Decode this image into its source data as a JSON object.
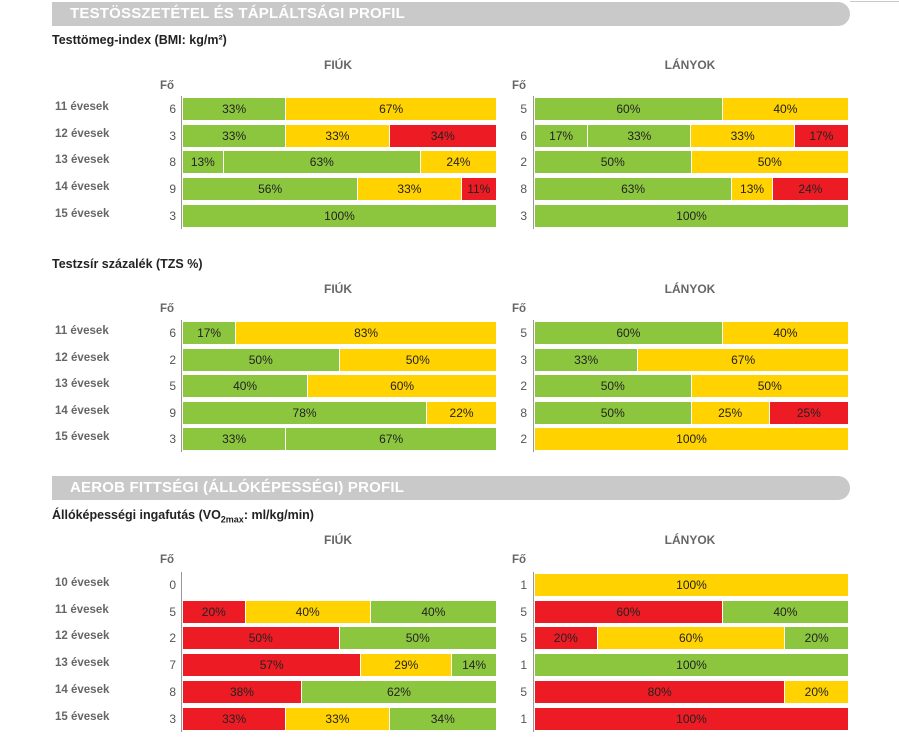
{
  "colors": {
    "green": "#8cc63f",
    "yellow": "#ffd200",
    "red": "#ed1c24"
  },
  "fo_label": "Fő",
  "group_labels": [
    "FIÚK",
    "LÁNYOK"
  ],
  "sections": [
    {
      "banner": "TESTÖSSZETÉTEL ÉS TÁPLÁLTSÁGI PROFIL",
      "charts": [
        {
          "title": "Testtömeg-index (BMI: kg/m²)",
          "rows": [
            {
              "label": "11 évesek",
              "boys": {
                "n": "6",
                "segs": [
                  {
                    "c": "green",
                    "v": 33
                  },
                  {
                    "c": "yellow",
                    "v": 67
                  }
                ]
              },
              "girls": {
                "n": "5",
                "segs": [
                  {
                    "c": "green",
                    "v": 60
                  },
                  {
                    "c": "yellow",
                    "v": 40
                  }
                ]
              }
            },
            {
              "label": "12 évesek",
              "boys": {
                "n": "3",
                "segs": [
                  {
                    "c": "green",
                    "v": 33
                  },
                  {
                    "c": "yellow",
                    "v": 33
                  },
                  {
                    "c": "red",
                    "v": 34
                  }
                ]
              },
              "girls": {
                "n": "6",
                "segs": [
                  {
                    "c": "green",
                    "v": 17
                  },
                  {
                    "c": "green",
                    "v": 33
                  },
                  {
                    "c": "yellow",
                    "v": 33
                  },
                  {
                    "c": "red",
                    "v": 17
                  }
                ]
              }
            },
            {
              "label": "13 évesek",
              "boys": {
                "n": "8",
                "segs": [
                  {
                    "c": "green",
                    "v": 13
                  },
                  {
                    "c": "green",
                    "v": 63
                  },
                  {
                    "c": "yellow",
                    "v": 24
                  }
                ]
              },
              "girls": {
                "n": "2",
                "segs": [
                  {
                    "c": "green",
                    "v": 50
                  },
                  {
                    "c": "yellow",
                    "v": 50
                  }
                ]
              }
            },
            {
              "label": "14 évesek",
              "boys": {
                "n": "9",
                "segs": [
                  {
                    "c": "green",
                    "v": 56
                  },
                  {
                    "c": "yellow",
                    "v": 33
                  },
                  {
                    "c": "red",
                    "v": 11
                  }
                ]
              },
              "girls": {
                "n": "8",
                "segs": [
                  {
                    "c": "green",
                    "v": 63
                  },
                  {
                    "c": "yellow",
                    "v": 13
                  },
                  {
                    "c": "red",
                    "v": 24
                  }
                ]
              }
            },
            {
              "label": "15 évesek",
              "boys": {
                "n": "3",
                "segs": [
                  {
                    "c": "green",
                    "v": 100
                  }
                ]
              },
              "girls": {
                "n": "3",
                "segs": [
                  {
                    "c": "green",
                    "v": 100
                  }
                ]
              }
            }
          ]
        },
        {
          "title": "Testzsír százalék (TZS %)",
          "rows": [
            {
              "label": "11 évesek",
              "boys": {
                "n": "6",
                "segs": [
                  {
                    "c": "green",
                    "v": 17
                  },
                  {
                    "c": "yellow",
                    "v": 83
                  }
                ]
              },
              "girls": {
                "n": "5",
                "segs": [
                  {
                    "c": "green",
                    "v": 60
                  },
                  {
                    "c": "yellow",
                    "v": 40
                  }
                ]
              }
            },
            {
              "label": "12 évesek",
              "boys": {
                "n": "2",
                "segs": [
                  {
                    "c": "green",
                    "v": 50
                  },
                  {
                    "c": "yellow",
                    "v": 50
                  }
                ]
              },
              "girls": {
                "n": "3",
                "segs": [
                  {
                    "c": "green",
                    "v": 33
                  },
                  {
                    "c": "yellow",
                    "v": 67
                  }
                ]
              }
            },
            {
              "label": "13 évesek",
              "boys": {
                "n": "5",
                "segs": [
                  {
                    "c": "green",
                    "v": 40
                  },
                  {
                    "c": "yellow",
                    "v": 60
                  }
                ]
              },
              "girls": {
                "n": "2",
                "segs": [
                  {
                    "c": "green",
                    "v": 50
                  },
                  {
                    "c": "yellow",
                    "v": 50
                  }
                ]
              }
            },
            {
              "label": "14 évesek",
              "boys": {
                "n": "9",
                "segs": [
                  {
                    "c": "green",
                    "v": 78
                  },
                  {
                    "c": "yellow",
                    "v": 22
                  }
                ]
              },
              "girls": {
                "n": "8",
                "segs": [
                  {
                    "c": "green",
                    "v": 50
                  },
                  {
                    "c": "yellow",
                    "v": 25
                  },
                  {
                    "c": "red",
                    "v": 25
                  }
                ]
              }
            },
            {
              "label": "15 évesek",
              "boys": {
                "n": "3",
                "segs": [
                  {
                    "c": "green",
                    "v": 33
                  },
                  {
                    "c": "green",
                    "v": 67
                  }
                ]
              },
              "girls": {
                "n": "2",
                "segs": [
                  {
                    "c": "yellow",
                    "v": 100
                  }
                ]
              }
            }
          ]
        }
      ]
    },
    {
      "banner": "AEROB FITTSÉGI (ÁLLÓKÉPESSÉGI) PROFIL",
      "charts": [
        {
          "title": "Állóképességi ingafutás (VO2max: ml/kg/min)",
          "title_main": "Állóképességi ingafutás (VO",
          "title_sub": "2max",
          "title_tail": ": ml/kg/min)",
          "rows": [
            {
              "label": "10 évesek",
              "boys": {
                "n": "0",
                "segs": []
              },
              "girls": {
                "n": "1",
                "segs": [
                  {
                    "c": "yellow",
                    "v": 100
                  }
                ]
              }
            },
            {
              "label": "11 évesek",
              "boys": {
                "n": "5",
                "segs": [
                  {
                    "c": "red",
                    "v": 20
                  },
                  {
                    "c": "yellow",
                    "v": 40
                  },
                  {
                    "c": "green",
                    "v": 40
                  }
                ]
              },
              "girls": {
                "n": "5",
                "segs": [
                  {
                    "c": "red",
                    "v": 60
                  },
                  {
                    "c": "green",
                    "v": 40
                  }
                ]
              }
            },
            {
              "label": "12 évesek",
              "boys": {
                "n": "2",
                "segs": [
                  {
                    "c": "red",
                    "v": 50
                  },
                  {
                    "c": "green",
                    "v": 50
                  }
                ]
              },
              "girls": {
                "n": "5",
                "segs": [
                  {
                    "c": "red",
                    "v": 20
                  },
                  {
                    "c": "yellow",
                    "v": 60
                  },
                  {
                    "c": "green",
                    "v": 20
                  }
                ]
              }
            },
            {
              "label": "13 évesek",
              "boys": {
                "n": "7",
                "segs": [
                  {
                    "c": "red",
                    "v": 57
                  },
                  {
                    "c": "yellow",
                    "v": 29
                  },
                  {
                    "c": "green",
                    "v": 14
                  }
                ]
              },
              "girls": {
                "n": "1",
                "segs": [
                  {
                    "c": "green",
                    "v": 100
                  }
                ]
              }
            },
            {
              "label": "14 évesek",
              "boys": {
                "n": "8",
                "segs": [
                  {
                    "c": "red",
                    "v": 38
                  },
                  {
                    "c": "green",
                    "v": 62
                  }
                ]
              },
              "girls": {
                "n": "5",
                "segs": [
                  {
                    "c": "red",
                    "v": 80
                  },
                  {
                    "c": "yellow",
                    "v": 20
                  }
                ]
              }
            },
            {
              "label": "15 évesek",
              "boys": {
                "n": "3",
                "segs": [
                  {
                    "c": "red",
                    "v": 33
                  },
                  {
                    "c": "yellow",
                    "v": 33
                  },
                  {
                    "c": "green",
                    "v": 34
                  }
                ]
              },
              "girls": {
                "n": "1",
                "segs": [
                  {
                    "c": "red",
                    "v": 100
                  }
                ]
              }
            }
          ]
        }
      ]
    }
  ],
  "chart_data": [
    {
      "type": "bar",
      "stacked": true,
      "orientation": "horizontal",
      "title": "Testtömeg-index (BMI: kg/m²)",
      "categories": [
        "11 évesek",
        "12 évesek",
        "13 évesek",
        "14 évesek",
        "15 évesek"
      ],
      "groups": [
        "FIÚK",
        "LÁNYOK"
      ],
      "unit": "%"
    },
    {
      "type": "bar",
      "stacked": true,
      "orientation": "horizontal",
      "title": "Testzsír százalék (TZS %)",
      "categories": [
        "11 évesek",
        "12 évesek",
        "13 évesek",
        "14 évesek",
        "15 évesek"
      ],
      "groups": [
        "FIÚK",
        "LÁNYOK"
      ],
      "unit": "%"
    },
    {
      "type": "bar",
      "stacked": true,
      "orientation": "horizontal",
      "title": "Állóképességi ingafutás (VO2max: ml/kg/min)",
      "categories": [
        "10 évesek",
        "11 évesek",
        "12 évesek",
        "13 évesek",
        "14 évesek",
        "15 évesek"
      ],
      "groups": [
        "FIÚK",
        "LÁNYOK"
      ],
      "unit": "%"
    }
  ]
}
